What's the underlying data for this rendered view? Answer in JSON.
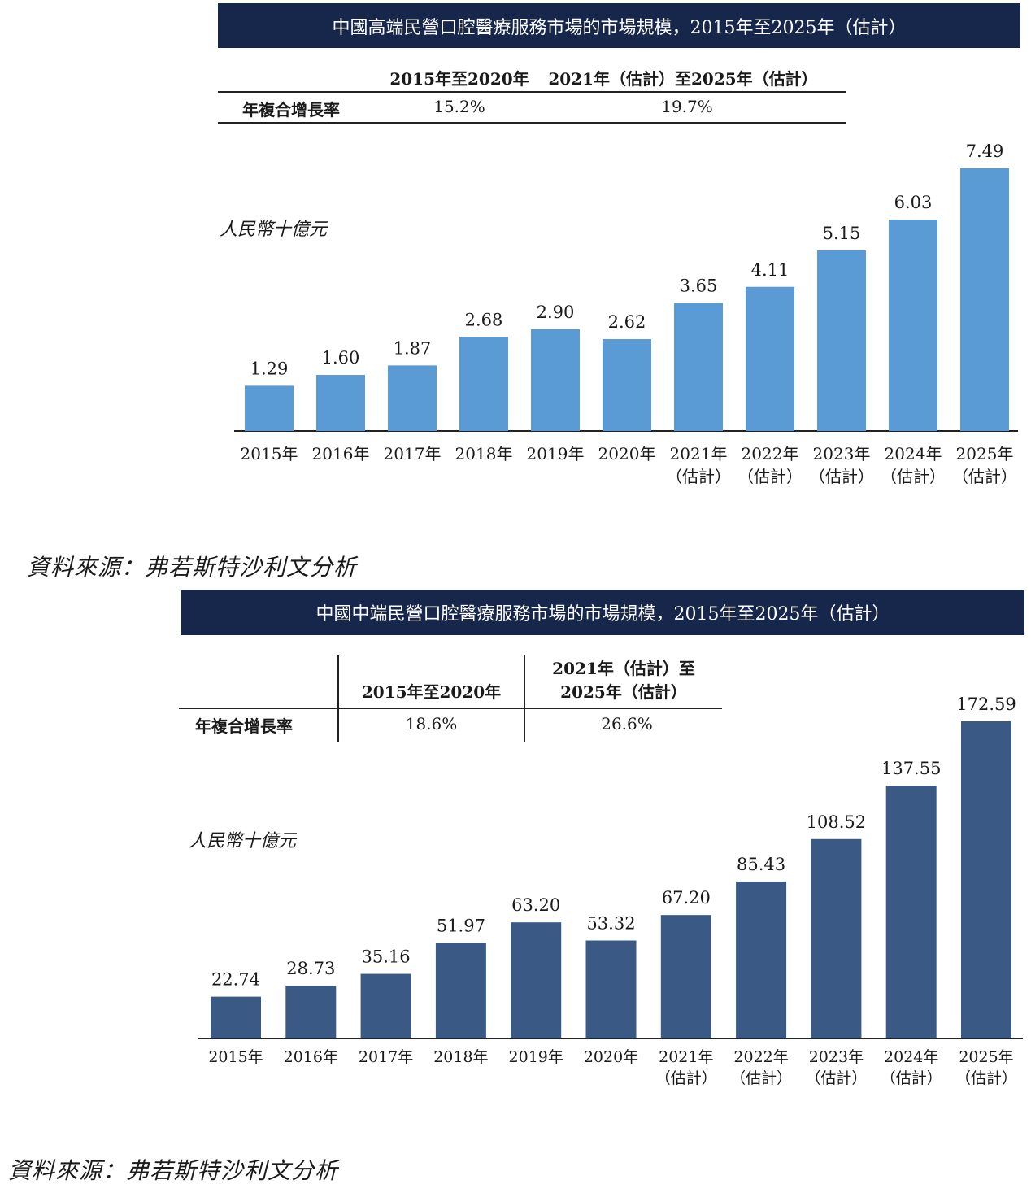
{
  "chart_data": [
    {
      "type": "bar",
      "title": "中國高端民營口腔醫療服務市場的市場規模，2015年至2025年（估計）",
      "ylabel": "人民幣十億元",
      "categories": [
        "2015年",
        "2016年",
        "2017年",
        "2018年",
        "2019年",
        "2020年",
        "2021年\n（估計）",
        "2022年\n（估計）",
        "2023年\n（估計）",
        "2024年\n（估計）",
        "2025年\n（估計）"
      ],
      "values": [
        1.29,
        1.6,
        1.87,
        2.68,
        2.9,
        2.62,
        3.65,
        4.11,
        5.15,
        6.03,
        7.49
      ],
      "value_labels": [
        "1.29",
        "1.60",
        "1.87",
        "2.68",
        "2.90",
        "2.62",
        "3.65",
        "4.11",
        "5.15",
        "6.03",
        "7.49"
      ],
      "color": "#5b9bd5",
      "ylim": [
        0,
        7.49
      ],
      "grid": false,
      "cagr": {
        "headers": [
          "2015年至2020年",
          "2021年（估計）至2025年（估計）"
        ],
        "row_label": "年複合增長率",
        "values": [
          "15.2%",
          "19.7%"
        ]
      },
      "source": "資料來源：弗若斯特沙利文分析"
    },
    {
      "type": "bar",
      "title": "中國中端民營口腔醫療服務市場的市場規模，2015年至2025年（估計）",
      "ylabel": "人民幣十億元",
      "categories": [
        "2015年",
        "2016年",
        "2017年",
        "2018年",
        "2019年",
        "2020年",
        "2021年\n（估計）",
        "2022年\n（估計）",
        "2023年\n（估計）",
        "2024年\n（估計）",
        "2025年\n（估計）"
      ],
      "values": [
        22.74,
        28.73,
        35.16,
        51.97,
        63.2,
        53.32,
        67.2,
        85.43,
        108.52,
        137.55,
        172.59
      ],
      "value_labels": [
        "22.74",
        "28.73",
        "35.16",
        "51.97",
        "63.20",
        "53.32",
        "67.20",
        "85.43",
        "108.52",
        "137.55",
        "172.59"
      ],
      "color": "#3a5a85",
      "ylim": [
        0,
        172.59
      ],
      "grid": false,
      "cagr": {
        "headers": [
          "2015年至2020年",
          "2021年（估計）至\n2025年（估計）"
        ],
        "row_label": "年複合增長率",
        "values": [
          "18.6%",
          "26.6%"
        ]
      },
      "source": "資料來源：弗若斯特沙利文分析"
    }
  ]
}
